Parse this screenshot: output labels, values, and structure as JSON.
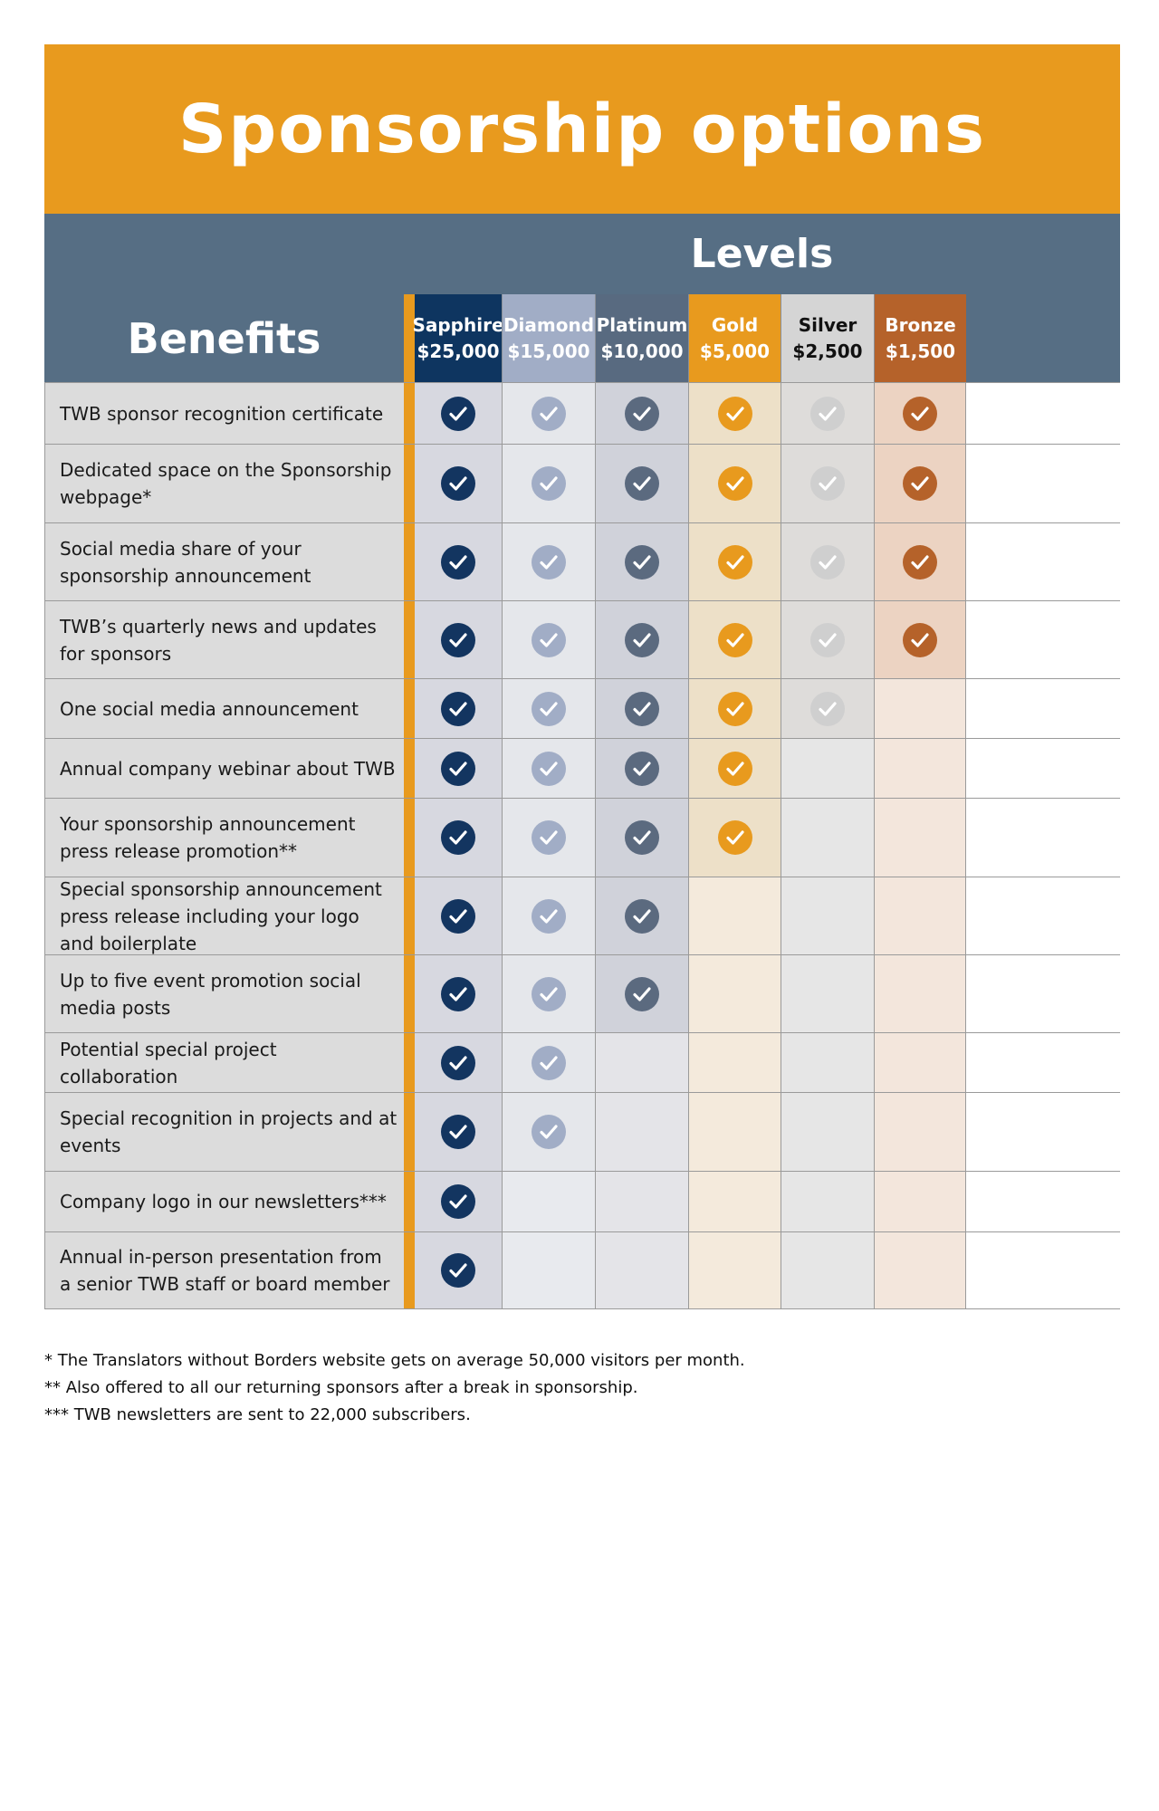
{
  "title": "Sponsorship options",
  "levels_title": "Levels",
  "benefits_title": "Benefits",
  "levels": [
    {
      "name": "Sapphire",
      "price": "$25,000",
      "head_bg": "#0e3560",
      "head_fg": "#ffffff",
      "cell_bg": "#d7d8e0",
      "check_color": "#133560"
    },
    {
      "name": "Diamond",
      "price": "$15,000",
      "head_bg": "#a1adc6",
      "head_fg": "#ffffff",
      "cell_bg": "#e5e7eb",
      "check_color": "#a1adc6"
    },
    {
      "name": "Platinum",
      "price": "$10,000",
      "head_bg": "#586a80",
      "head_fg": "#ffffff",
      "cell_bg": "#d0d2da",
      "check_color": "#5b6a7f"
    },
    {
      "name": "Gold",
      "price": "$5,000",
      "head_bg": "#e89a1e",
      "head_fg": "#ffffff",
      "cell_bg": "#ede0c8",
      "check_color": "#e89a1e"
    },
    {
      "name": "Silver",
      "price": "$2,500",
      "head_bg": "#d5d5d5",
      "head_fg": "#111111",
      "cell_bg": "#dedcda",
      "check_color": "#cfcfcf"
    },
    {
      "name": "Bronze",
      "price": "$1,500",
      "head_bg": "#b5622a",
      "head_fg": "#ffffff",
      "cell_bg": "#ecd3c2",
      "check_color": "#b5622a"
    }
  ],
  "empty_cell_bg": [
    "#dedee4",
    "#e8eaee",
    "#e4e4e8",
    "#f4eadc",
    "#e6e6e6",
    "#f3e6dc"
  ],
  "benefits": [
    {
      "label": "TWB sponsor recognition certificate",
      "checks": [
        true,
        true,
        true,
        true,
        true,
        true
      ]
    },
    {
      "label": "Dedicated space on the Sponsorship webpage*",
      "checks": [
        true,
        true,
        true,
        true,
        true,
        true
      ]
    },
    {
      "label": "Social media share of your sponsorship announcement",
      "checks": [
        true,
        true,
        true,
        true,
        true,
        true
      ]
    },
    {
      "label": "TWB’s quarterly news and updates for sponsors",
      "checks": [
        true,
        true,
        true,
        true,
        true,
        true
      ]
    },
    {
      "label": "One social media announcement",
      "checks": [
        true,
        true,
        true,
        true,
        true,
        false
      ]
    },
    {
      "label": "Annual company webinar about TWB",
      "checks": [
        true,
        true,
        true,
        true,
        false,
        false
      ]
    },
    {
      "label": "Your sponsorship announcement press release promotion**",
      "checks": [
        true,
        true,
        true,
        true,
        false,
        false
      ]
    },
    {
      "label": "Special sponsorship announcement press release including your logo and boilerplate",
      "checks": [
        true,
        true,
        true,
        false,
        false,
        false
      ]
    },
    {
      "label": "Up to five event promotion social media posts",
      "checks": [
        true,
        true,
        true,
        false,
        false,
        false
      ]
    },
    {
      "label": "Potential special project collaboration",
      "checks": [
        true,
        true,
        false,
        false,
        false,
        false
      ]
    },
    {
      "label": "Special recognition in projects and at events",
      "checks": [
        true,
        true,
        false,
        false,
        false,
        false
      ]
    },
    {
      "label": "Company logo in our newsletters***",
      "checks": [
        true,
        false,
        false,
        false,
        false,
        false
      ]
    },
    {
      "label": "Annual in-person presentation from a senior TWB staff or board member",
      "checks": [
        true,
        false,
        false,
        false,
        false,
        false
      ]
    }
  ],
  "footnotes": [
    "* The Translators without Borders website gets on average 50,000 visitors per month.",
    "** Also offered to all our returning sponsors after a break in sponsorship.",
    "*** TWB newsletters are sent to 22,000 subscribers."
  ]
}
